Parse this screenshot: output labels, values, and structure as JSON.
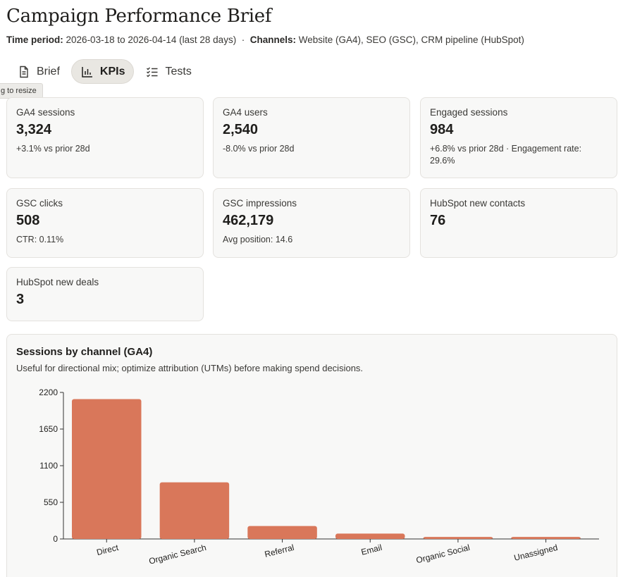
{
  "page": {
    "title": "Campaign Performance Brief",
    "meta": {
      "period_label": "Time period:",
      "period_value": "2026-03-18 to 2026-04-14 (last 28 days)",
      "separator": "·",
      "channels_label": "Channels:",
      "channels_value": "Website (GA4), SEO (GSC), CRM pipeline (HubSpot)"
    }
  },
  "tabs": [
    {
      "label": "Brief",
      "icon": "document-icon",
      "active": false
    },
    {
      "label": "KPIs",
      "icon": "bar-chart-icon",
      "active": true
    },
    {
      "label": "Tests",
      "icon": "checklist-icon",
      "active": false
    }
  ],
  "tooltip": "g to resize",
  "kpis": [
    {
      "label": "GA4 sessions",
      "value": "3,324",
      "note": "+3.1% vs prior 28d"
    },
    {
      "label": "GA4 users",
      "value": "2,540",
      "note": "-8.0% vs prior 28d"
    },
    {
      "label": "Engaged sessions",
      "value": "984",
      "note": "+6.8% vs prior 28d · Engagement rate: 29.6%"
    },
    {
      "label": "GSC clicks",
      "value": "508",
      "note": "CTR: 0.11%"
    },
    {
      "label": "GSC impressions",
      "value": "462,179",
      "note": "Avg position: 14.6"
    },
    {
      "label": "HubSpot new contacts",
      "value": "76",
      "note": ""
    },
    {
      "label": "HubSpot new deals",
      "value": "3",
      "note": ""
    }
  ],
  "chart_section": {
    "title": "Sessions by channel (GA4)",
    "subtitle": "Useful for directional mix; optimize attribution (UTMs) before making spend decisions."
  },
  "colors": {
    "bar": "#d9775a",
    "accent_bg": "#e9e7e2"
  },
  "chart_data": {
    "type": "bar",
    "title": "Sessions by channel (GA4)",
    "categories": [
      "Direct",
      "Organic Search",
      "Referral",
      "Email",
      "Organic Social",
      "Unassigned"
    ],
    "values": [
      2100,
      850,
      195,
      80,
      30,
      30
    ],
    "yticks": [
      0,
      550,
      1100,
      1650,
      2200
    ],
    "ylim": [
      0,
      2200
    ],
    "xlabel": "",
    "ylabel": "",
    "grid": false
  }
}
